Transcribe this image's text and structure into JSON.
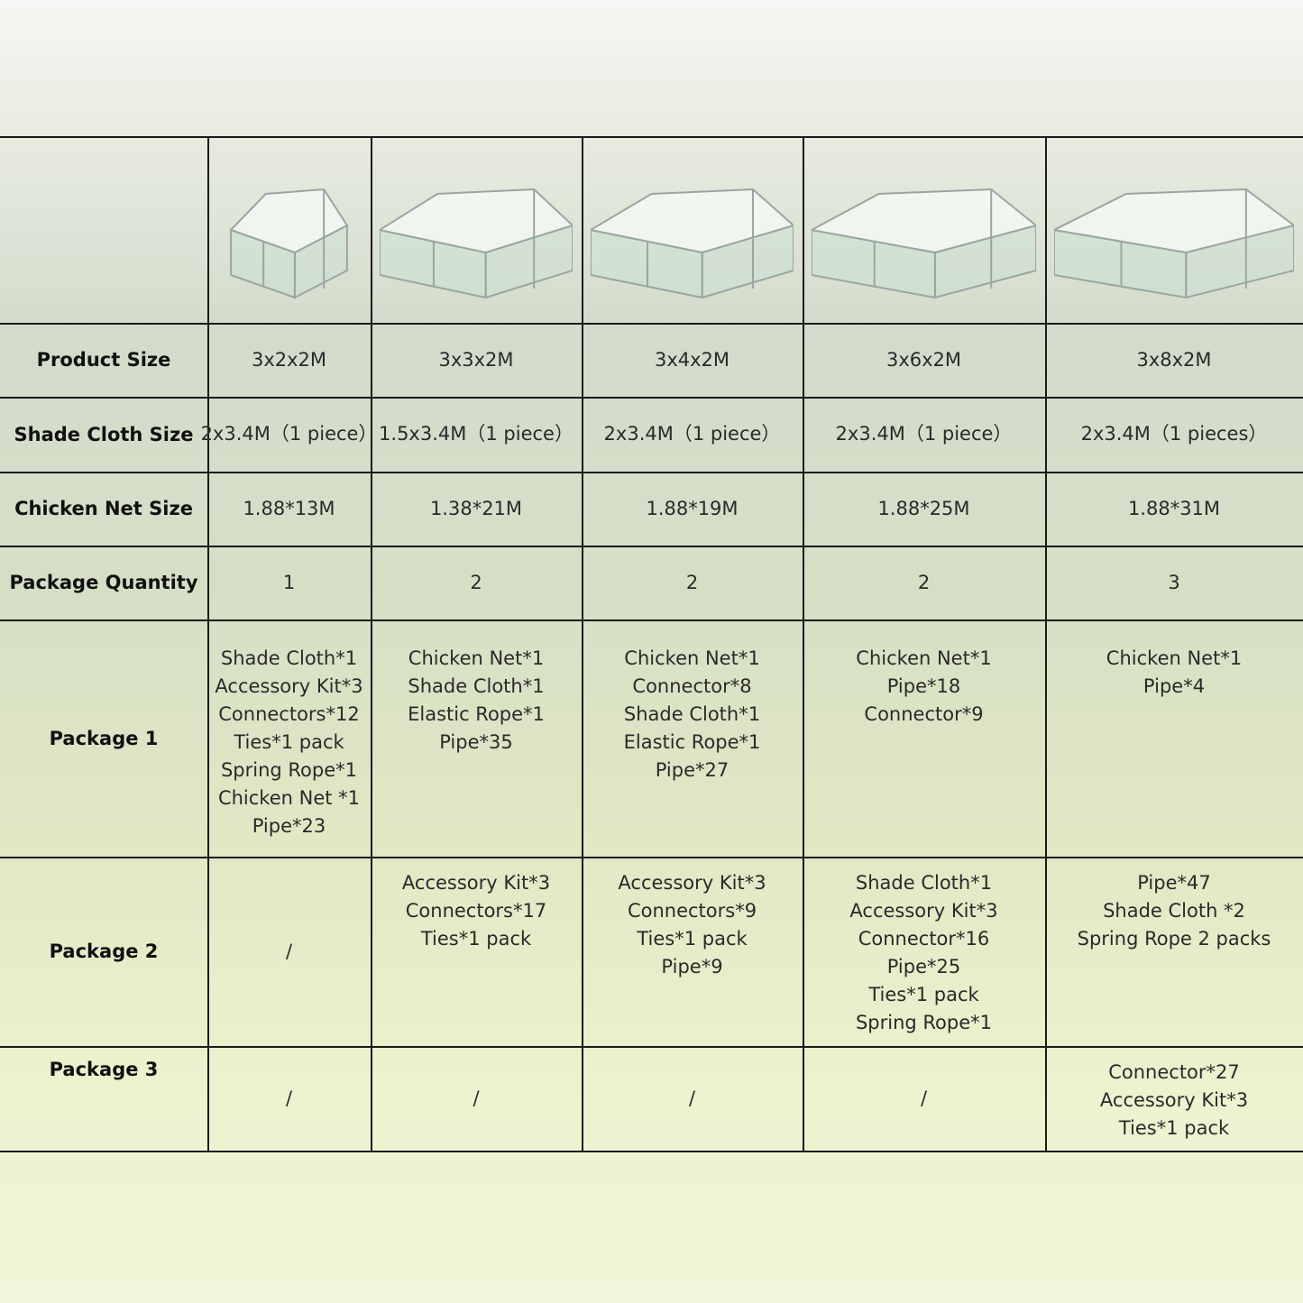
{
  "table": {
    "rows": [
      {
        "label": "Product Size",
        "cells": [
          "3x2x2M",
          "3x3x2M",
          "3x4x2M",
          "3x6x2M",
          "3x8x2M"
        ]
      },
      {
        "label": "Shade Cloth Size",
        "cells": [
          "2x3.4M（1 piece）",
          "1.5x3.4M（1 piece）",
          "2x3.4M（1 piece）",
          "2x3.4M（1 piece）",
          "2x3.4M（1 pieces）"
        ]
      },
      {
        "label": "Chicken Net Size",
        "cells": [
          "1.88*13M",
          "1.38*21M",
          "1.88*19M",
          "1.88*25M",
          "1.88*31M"
        ]
      },
      {
        "label": "Package Quantity",
        "cells": [
          "1",
          "2",
          "2",
          "2",
          "3"
        ]
      },
      {
        "label": "Package 1",
        "cells": [
          [
            "Shade Cloth*1",
            "Accessory Kit*3",
            "Connectors*12",
            "Ties*1 pack",
            "Spring Rope*1",
            "Chicken Net *1",
            "Pipe*23"
          ],
          [
            "Chicken Net*1",
            "Shade Cloth*1",
            "Elastic Rope*1",
            "Pipe*35"
          ],
          [
            "Chicken Net*1",
            "Connector*8",
            "Shade Cloth*1",
            "Elastic Rope*1",
            "Pipe*27"
          ],
          [
            "Chicken Net*1",
            "Pipe*18",
            "Connector*9"
          ],
          [
            "Chicken Net*1",
            "Pipe*4"
          ]
        ]
      },
      {
        "label": "Package 2",
        "cells": [
          [
            "/"
          ],
          [
            "Accessory Kit*3",
            "Connectors*17",
            "Ties*1 pack"
          ],
          [
            "Accessory Kit*3",
            "Connectors*9",
            "Ties*1 pack",
            "Pipe*9"
          ],
          [
            "Shade Cloth*1",
            "Accessory Kit*3",
            "Connector*16",
            "Pipe*25",
            "Ties*1 pack",
            "Spring Rope*1"
          ],
          [
            "Pipe*47",
            "Shade Cloth *2",
            "Spring Rope 2 packs"
          ]
        ]
      },
      {
        "label": "Package 3",
        "cells": [
          [
            "/"
          ],
          [
            "/"
          ],
          [
            "/"
          ],
          [
            "/"
          ],
          [
            "Connector*27",
            "Accessory Kit*3",
            "Ties*1 pack"
          ]
        ]
      }
    ]
  }
}
